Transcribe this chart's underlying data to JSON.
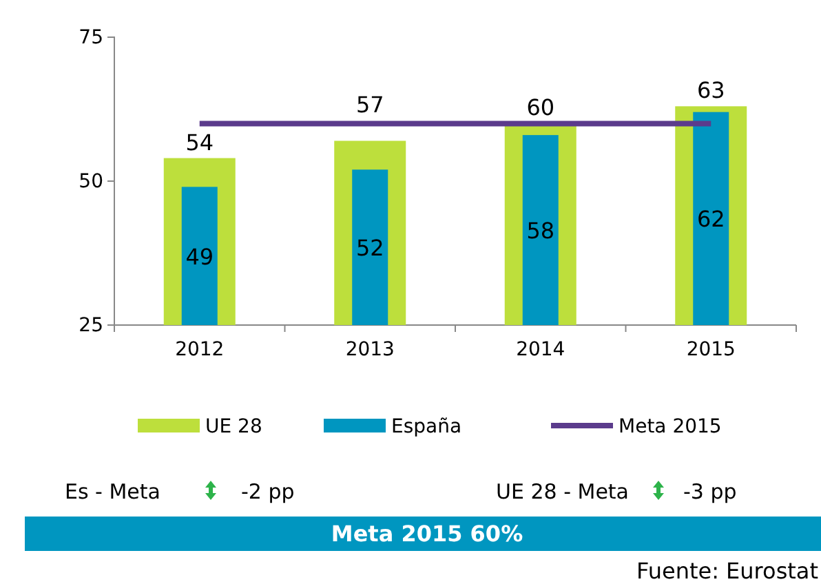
{
  "chart_data": {
    "type": "bar",
    "categories": [
      "2012",
      "2013",
      "2014",
      "2015"
    ],
    "series": [
      {
        "name": "UE 28",
        "color": "#bddf3c",
        "values": [
          54,
          57,
          60,
          63
        ],
        "value_labels": [
          "54",
          "57",
          "60",
          "63"
        ]
      },
      {
        "name": "España",
        "color": "#0096c0",
        "values": [
          49,
          52,
          58,
          62
        ],
        "value_labels": [
          "49",
          "52",
          "58",
          "62"
        ]
      },
      {
        "name": "Meta 2015",
        "type": "line",
        "color": "#5b3b8c",
        "values": [
          60,
          60,
          60,
          60
        ]
      }
    ],
    "ylim": [
      25,
      75
    ],
    "yticks": [
      25,
      50,
      75
    ],
    "grid": false,
    "legend": "bottom",
    "marker": "none",
    "line_style": "solid",
    "annotations": [
      "Es - Meta",
      "-2 pp",
      "UE 28 - Meta",
      "-3 pp",
      "Meta 2015 60%",
      "Fuente: Eurostat"
    ]
  }
}
